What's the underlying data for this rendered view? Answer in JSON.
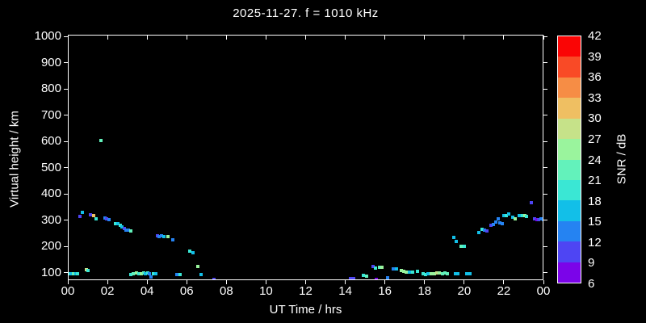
{
  "title": "2025-11-27. f = 1010 kHz",
  "chart_data": {
    "type": "scatter",
    "title": "2025-11-27. f = 1010 kHz",
    "xlabel": "UT Time / hrs",
    "ylabel": "Virtual height / km",
    "xlim": [
      0,
      24
    ],
    "ylim": [
      72,
      1007
    ],
    "grid": false,
    "background_color": "#000000",
    "axis_color": "#ffffff",
    "x_tick_values": [
      0,
      2,
      4,
      6,
      8,
      10,
      12,
      14,
      16,
      18,
      20,
      22,
      24
    ],
    "x_tick_labels": [
      "00",
      "02",
      "04",
      "06",
      "08",
      "10",
      "12",
      "14",
      "16",
      "18",
      "20",
      "22",
      "00"
    ],
    "y_tick_values": [
      100,
      200,
      300,
      400,
      500,
      600,
      700,
      800,
      900,
      1000
    ],
    "colorbar": {
      "label": "SNR / dB",
      "min": 6,
      "max": 42,
      "step": 3,
      "tick_labels": [
        "42",
        "39",
        "36",
        "33",
        "30",
        "27",
        "24",
        "21",
        "18",
        "15",
        "12",
        "9",
        "6"
      ],
      "band_colors_low_to_high": [
        "#7B04E9",
        "#4E45F3",
        "#2583F2",
        "#12BFE8",
        "#3AE7D4",
        "#63F2BB",
        "#9AF49D",
        "#C6E289",
        "#EFBF62",
        "#F68D45",
        "#F94A26",
        "#FA0505"
      ]
    },
    "points_format": "[ut_hours, virtual_height_km, snr_band_index_0_to_11]",
    "points": [
      [
        0.58,
        318,
        1
      ],
      [
        0.7,
        334,
        3
      ],
      [
        1.1,
        323,
        1
      ],
      [
        1.27,
        322,
        8
      ],
      [
        1.37,
        308,
        4
      ],
      [
        1.63,
        607,
        5
      ],
      [
        1.82,
        312,
        2
      ],
      [
        1.93,
        309,
        1
      ],
      [
        2.02,
        306,
        2
      ],
      [
        2.38,
        291,
        4
      ],
      [
        2.5,
        289,
        3
      ],
      [
        2.6,
        284,
        4
      ],
      [
        2.7,
        279,
        3
      ],
      [
        2.8,
        271,
        1
      ],
      [
        2.9,
        267,
        2
      ],
      [
        3.0,
        265,
        2
      ],
      [
        3.12,
        263,
        5
      ],
      [
        4.48,
        243,
        1
      ],
      [
        4.58,
        241,
        2
      ],
      [
        4.7,
        243,
        2
      ],
      [
        4.82,
        240,
        3
      ],
      [
        5.0,
        241,
        6
      ],
      [
        5.25,
        230,
        2
      ],
      [
        6.12,
        187,
        4
      ],
      [
        6.28,
        180,
        3
      ],
      [
        6.5,
        126,
        6
      ],
      [
        6.7,
        97,
        3
      ],
      [
        7.35,
        78,
        1
      ],
      [
        0.04,
        100,
        4
      ],
      [
        0.14,
        101,
        3
      ],
      [
        0.25,
        100,
        5
      ],
      [
        0.36,
        99,
        3
      ],
      [
        0.46,
        100,
        4
      ],
      [
        0.9,
        116,
        7
      ],
      [
        0.98,
        112,
        4
      ],
      [
        3.15,
        98,
        4
      ],
      [
        3.28,
        100,
        5
      ],
      [
        3.42,
        102,
        6
      ],
      [
        3.55,
        100,
        4
      ],
      [
        3.67,
        101,
        6
      ],
      [
        3.78,
        103,
        5
      ],
      [
        3.88,
        99,
        3
      ],
      [
        3.98,
        102,
        4
      ],
      [
        4.08,
        100,
        2
      ],
      [
        4.15,
        88,
        2
      ],
      [
        4.28,
        101,
        4
      ],
      [
        4.42,
        100,
        3
      ],
      [
        5.45,
        97,
        2
      ],
      [
        5.62,
        97,
        4
      ],
      [
        14.22,
        80,
        1
      ],
      [
        14.38,
        81,
        1
      ],
      [
        14.88,
        92,
        4
      ],
      [
        15.02,
        91,
        5
      ],
      [
        15.35,
        128,
        1
      ],
      [
        15.48,
        122,
        4
      ],
      [
        15.52,
        78,
        0
      ],
      [
        15.7,
        125,
        5
      ],
      [
        15.82,
        123,
        6
      ],
      [
        16.08,
        85,
        2
      ],
      [
        16.4,
        117,
        2
      ],
      [
        16.55,
        118,
        3
      ],
      [
        16.8,
        111,
        6
      ],
      [
        16.92,
        109,
        6
      ],
      [
        17.05,
        106,
        6
      ],
      [
        17.2,
        107,
        3
      ],
      [
        17.35,
        105,
        4
      ],
      [
        17.6,
        108,
        4
      ],
      [
        17.9,
        99,
        4
      ],
      [
        18.02,
        97,
        4
      ],
      [
        18.15,
        99,
        3
      ],
      [
        18.3,
        100,
        6
      ],
      [
        18.45,
        99,
        6
      ],
      [
        18.6,
        103,
        7
      ],
      [
        18.72,
        104,
        6
      ],
      [
        18.85,
        101,
        5
      ],
      [
        19.0,
        102,
        5
      ],
      [
        19.1,
        100,
        5
      ],
      [
        19.5,
        100,
        3
      ],
      [
        19.62,
        100,
        3
      ],
      [
        20.1,
        100,
        3
      ],
      [
        20.25,
        100,
        3
      ],
      [
        19.42,
        238,
        3
      ],
      [
        19.57,
        222,
        3
      ],
      [
        19.8,
        204,
        5
      ],
      [
        19.95,
        205,
        4
      ],
      [
        20.7,
        258,
        3
      ],
      [
        20.85,
        270,
        4
      ],
      [
        21.0,
        265,
        2
      ],
      [
        21.1,
        263,
        1
      ],
      [
        21.3,
        284,
        1
      ],
      [
        21.42,
        287,
        2
      ],
      [
        21.55,
        297,
        2
      ],
      [
        21.67,
        309,
        2
      ],
      [
        21.77,
        293,
        2
      ],
      [
        21.87,
        291,
        2
      ],
      [
        21.97,
        320,
        3
      ],
      [
        22.1,
        322,
        4
      ],
      [
        22.22,
        326,
        3
      ],
      [
        22.4,
        316,
        3
      ],
      [
        22.55,
        310,
        6
      ],
      [
        22.75,
        320,
        3
      ],
      [
        22.9,
        322,
        4
      ],
      [
        23.02,
        320,
        6
      ],
      [
        23.12,
        319,
        4
      ],
      [
        23.35,
        369,
        1
      ],
      [
        23.5,
        308,
        1
      ],
      [
        23.62,
        306,
        0
      ],
      [
        23.72,
        305,
        1
      ],
      [
        23.85,
        308,
        2
      ],
      [
        23.97,
        306,
        2
      ]
    ]
  }
}
